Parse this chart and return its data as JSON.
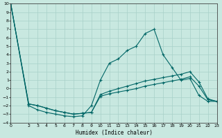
{
  "xlabel": "Humidex (Indice chaleur)",
  "background_color": "#c8e8e0",
  "grid_color": "#a8d0c8",
  "line_color": "#006666",
  "xlim": [
    0,
    23
  ],
  "ylim": [
    -4,
    10
  ],
  "xticks": [
    0,
    2,
    3,
    4,
    5,
    6,
    7,
    8,
    9,
    10,
    11,
    12,
    13,
    14,
    15,
    16,
    17,
    18,
    19,
    20,
    21,
    22,
    23
  ],
  "yticks": [
    -4,
    -3,
    -2,
    -1,
    0,
    1,
    2,
    3,
    4,
    5,
    6,
    7,
    8,
    9,
    10
  ],
  "line1_x": [
    0,
    2,
    3,
    4,
    5,
    6,
    7,
    8,
    9,
    10,
    11,
    12,
    13,
    14,
    15,
    16,
    17,
    18,
    19,
    20,
    21,
    22,
    23
  ],
  "line1_y": [
    10,
    -2,
    -2.5,
    -2.8,
    -3.0,
    -3.2,
    -3.3,
    -3.2,
    -2.0,
    1.0,
    3.0,
    3.5,
    4.5,
    5.0,
    6.5,
    7.0,
    4.0,
    2.5,
    1.0,
    1.2,
    -0.8,
    -1.5,
    -1.5
  ],
  "line2_x": [
    0,
    2,
    3,
    4,
    5,
    6,
    7,
    8,
    9,
    10,
    11,
    12,
    13,
    14,
    15,
    16,
    17,
    18,
    19,
    20,
    21,
    22,
    23
  ],
  "line2_y": [
    10,
    -1.8,
    -2.0,
    -2.3,
    -2.6,
    -2.8,
    -3.0,
    -2.9,
    -2.8,
    -0.7,
    -0.3,
    0.0,
    0.3,
    0.6,
    0.9,
    1.1,
    1.3,
    1.5,
    1.7,
    2.0,
    0.8,
    -1.2,
    -1.5
  ],
  "line3_x": [
    0,
    2,
    3,
    4,
    5,
    6,
    7,
    8,
    9,
    10,
    11,
    12,
    13,
    14,
    15,
    16,
    17,
    18,
    19,
    20,
    21,
    22,
    23
  ],
  "line3_y": [
    10,
    -1.8,
    -2.0,
    -2.3,
    -2.6,
    -2.8,
    -3.0,
    -2.9,
    -2.8,
    -0.9,
    -0.6,
    -0.4,
    -0.2,
    0.0,
    0.3,
    0.5,
    0.7,
    0.9,
    1.1,
    1.4,
    0.3,
    -1.3,
    -1.5
  ]
}
